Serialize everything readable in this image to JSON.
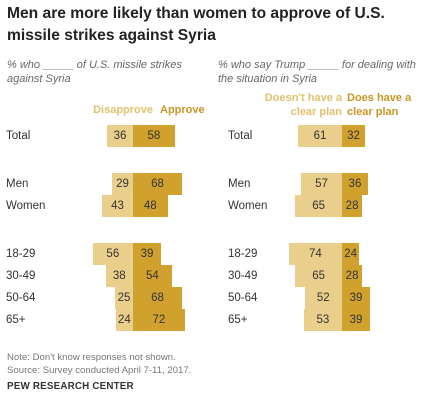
{
  "title": "Men are more likely than women to approve of U.S. missile strikes against Syria",
  "notes": [
    "Note: Don't know responses not shown.",
    "Source: Survey conducted April 7-11, 2017."
  ],
  "source_org": "PEW RESEARCH CENTER",
  "colors": {
    "light": "#e9cf8b",
    "dark": "#d1a12d",
    "light_text": "#e0c16e",
    "dark_text": "#c99524"
  },
  "categories": [
    "Total",
    "Men",
    "Women",
    "18-29",
    "30-49",
    "50-64",
    "65+"
  ],
  "chart_data": [
    {
      "type": "bar",
      "subtitle": "% who _____ of U.S. missile strikes against Syria",
      "categories": [
        "Total",
        "Men",
        "Women",
        "18-29",
        "30-49",
        "50-64",
        "65+"
      ],
      "series": [
        {
          "name": "Disapprove",
          "values": [
            36,
            29,
            43,
            56,
            38,
            25,
            24
          ]
        },
        {
          "name": "Approve",
          "values": [
            58,
            68,
            48,
            39,
            54,
            68,
            72
          ]
        }
      ]
    },
    {
      "type": "bar",
      "subtitle": "% who say Trump _____ for dealing with the situation in Syria",
      "categories": [
        "Total",
        "Men",
        "Women",
        "18-29",
        "30-49",
        "50-64",
        "65+"
      ],
      "series": [
        {
          "name": "Doesn't have a clear plan",
          "values": [
            61,
            57,
            65,
            74,
            65,
            52,
            53
          ]
        },
        {
          "name": "Does have a clear plan",
          "values": [
            32,
            36,
            28,
            24,
            28,
            39,
            39
          ]
        }
      ]
    }
  ]
}
